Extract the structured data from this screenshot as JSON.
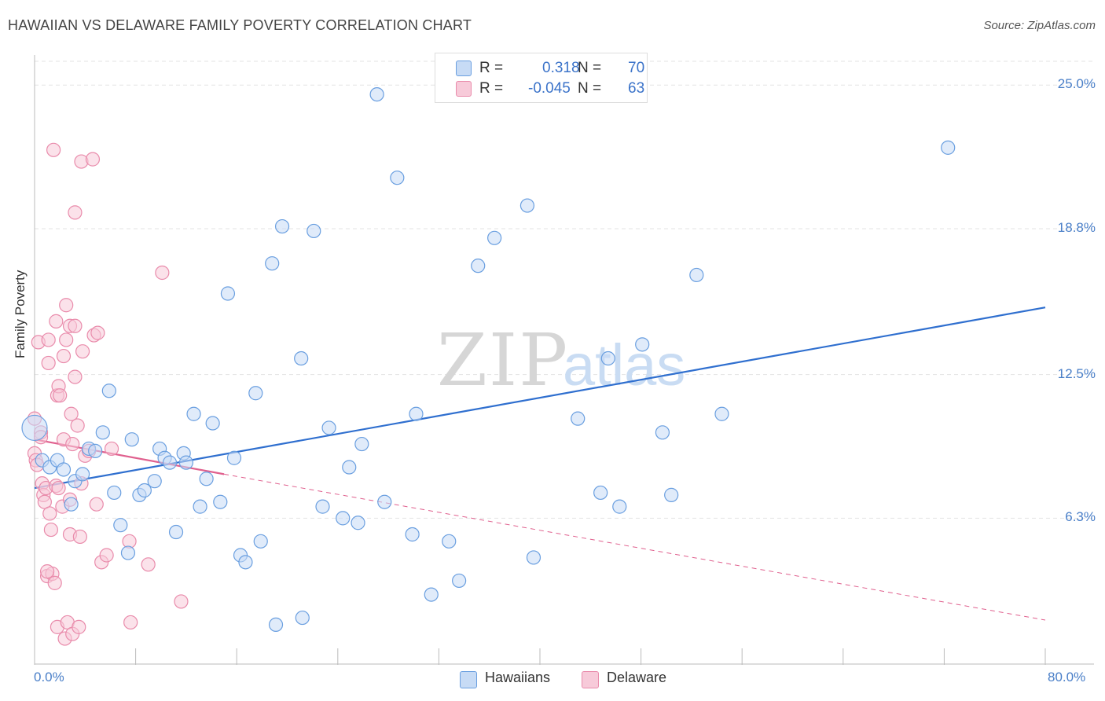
{
  "title": "HAWAIIAN VS DELAWARE FAMILY POVERTY CORRELATION CHART",
  "source": "Source: ZipAtlas.com",
  "watermark": {
    "zip": "ZIP",
    "atlas": "atlas"
  },
  "legend_top": {
    "rows": [
      {
        "r_label": "R =",
        "r_value": "0.318",
        "n_label": "N =",
        "n_value": "70"
      },
      {
        "r_label": "R =",
        "r_value": "-0.045",
        "n_label": "N =",
        "n_value": "63"
      }
    ]
  },
  "legend_bottom": [
    "Hawaiians",
    "Delaware"
  ],
  "colors": {
    "hawaiians": "#6a9fe0",
    "hawaiians_fill": "#c7dbf5",
    "hawaiians_line": "#2f6fcf",
    "delaware": "#e98bab",
    "delaware_fill": "#f7cad9",
    "delaware_line": "#e0608e",
    "tick_text": "#4a7fc8",
    "grid": "#e3e3e3"
  },
  "chart_data": {
    "type": "scatter",
    "title": "HAWAIIAN VS DELAWARE FAMILY POVERTY CORRELATION CHART",
    "xlabel": "",
    "ylabel": "Family Poverty",
    "xlim": [
      0,
      80
    ],
    "ylim": [
      0,
      26.3
    ],
    "x_tick_labels": [
      "0.0%",
      "80.0%"
    ],
    "y_ticks": [
      6.3,
      12.5,
      18.8,
      25.0
    ],
    "y_tick_labels": [
      "6.3%",
      "12.5%",
      "18.8%",
      "25.0%"
    ],
    "grid": true,
    "legend": "bottom-center",
    "series": [
      {
        "name": "Hawaiians",
        "r": 0.318,
        "n": 70,
        "trend": {
          "x": [
            0,
            80
          ],
          "y": [
            7.6,
            15.4
          ],
          "style": "solid"
        },
        "points": [
          [
            0.0,
            10.2
          ],
          [
            0.6,
            8.8
          ],
          [
            1.2,
            8.5
          ],
          [
            1.8,
            8.8
          ],
          [
            2.3,
            8.4
          ],
          [
            2.9,
            6.9
          ],
          [
            3.2,
            7.9
          ],
          [
            3.8,
            8.2
          ],
          [
            4.3,
            9.3
          ],
          [
            4.8,
            9.2
          ],
          [
            5.4,
            10.0
          ],
          [
            5.9,
            11.8
          ],
          [
            6.3,
            7.4
          ],
          [
            6.8,
            6.0
          ],
          [
            7.4,
            4.8
          ],
          [
            7.7,
            9.7
          ],
          [
            8.3,
            7.3
          ],
          [
            8.7,
            7.5
          ],
          [
            9.5,
            7.9
          ],
          [
            9.9,
            9.3
          ],
          [
            10.3,
            8.9
          ],
          [
            10.7,
            8.7
          ],
          [
            11.2,
            5.7
          ],
          [
            11.8,
            9.1
          ],
          [
            12.0,
            8.7
          ],
          [
            12.6,
            10.8
          ],
          [
            13.1,
            6.8
          ],
          [
            13.6,
            8.0
          ],
          [
            14.1,
            10.4
          ],
          [
            14.7,
            7.0
          ],
          [
            15.3,
            16.0
          ],
          [
            15.8,
            8.9
          ],
          [
            16.3,
            4.7
          ],
          [
            16.7,
            4.4
          ],
          [
            17.5,
            11.7
          ],
          [
            17.9,
            5.3
          ],
          [
            18.8,
            17.3
          ],
          [
            19.1,
            1.7
          ],
          [
            19.6,
            18.9
          ],
          [
            21.1,
            13.2
          ],
          [
            21.2,
            2.0
          ],
          [
            22.1,
            18.7
          ],
          [
            22.8,
            6.8
          ],
          [
            23.3,
            10.2
          ],
          [
            24.4,
            6.3
          ],
          [
            24.9,
            8.5
          ],
          [
            25.6,
            6.1
          ],
          [
            25.9,
            9.5
          ],
          [
            27.1,
            24.6
          ],
          [
            27.7,
            7.0
          ],
          [
            28.7,
            21.0
          ],
          [
            29.9,
            5.6
          ],
          [
            30.2,
            10.8
          ],
          [
            31.4,
            3.0
          ],
          [
            32.8,
            5.3
          ],
          [
            33.6,
            3.6
          ],
          [
            35.1,
            17.2
          ],
          [
            36.4,
            18.4
          ],
          [
            39.0,
            19.8
          ],
          [
            39.5,
            4.6
          ],
          [
            43.0,
            10.6
          ],
          [
            44.8,
            7.4
          ],
          [
            45.4,
            13.2
          ],
          [
            46.3,
            6.8
          ],
          [
            48.1,
            13.8
          ],
          [
            49.7,
            10.0
          ],
          [
            50.4,
            7.3
          ],
          [
            52.4,
            16.8
          ],
          [
            54.4,
            10.8
          ],
          [
            72.3,
            22.3
          ]
        ]
      },
      {
        "name": "Delaware",
        "r": -0.045,
        "n": 63,
        "trend": {
          "x": [
            0,
            15
          ],
          "y": [
            9.7,
            8.2
          ],
          "style": "solid",
          "extended_x": [
            15,
            80
          ],
          "extended_y": [
            8.2,
            1.9
          ],
          "extended_style": "dashed"
        },
        "points": [
          [
            0.0,
            10.6
          ],
          [
            0.0,
            9.1
          ],
          [
            0.1,
            8.8
          ],
          [
            0.2,
            8.6
          ],
          [
            0.3,
            13.9
          ],
          [
            0.5,
            10.0
          ],
          [
            0.5,
            9.8
          ],
          [
            0.6,
            7.8
          ],
          [
            0.7,
            7.3
          ],
          [
            0.8,
            7.0
          ],
          [
            0.9,
            7.6
          ],
          [
            1.0,
            3.8
          ],
          [
            1.1,
            13.0
          ],
          [
            1.1,
            14.0
          ],
          [
            1.2,
            6.5
          ],
          [
            1.3,
            5.8
          ],
          [
            1.4,
            3.9
          ],
          [
            1.5,
            22.2
          ],
          [
            1.6,
            3.5
          ],
          [
            1.7,
            14.8
          ],
          [
            1.7,
            7.7
          ],
          [
            1.8,
            11.6
          ],
          [
            1.8,
            1.6
          ],
          [
            1.9,
            12.0
          ],
          [
            2.0,
            11.6
          ],
          [
            2.2,
            6.8
          ],
          [
            2.3,
            13.3
          ],
          [
            2.3,
            9.7
          ],
          [
            2.4,
            1.1
          ],
          [
            2.5,
            15.5
          ],
          [
            2.5,
            14.0
          ],
          [
            2.6,
            1.8
          ],
          [
            2.8,
            14.6
          ],
          [
            2.8,
            5.6
          ],
          [
            2.9,
            10.8
          ],
          [
            3.0,
            1.3
          ],
          [
            3.0,
            9.5
          ],
          [
            3.2,
            12.4
          ],
          [
            3.2,
            19.5
          ],
          [
            3.2,
            14.6
          ],
          [
            3.4,
            10.3
          ],
          [
            3.5,
            1.6
          ],
          [
            3.6,
            5.5
          ],
          [
            3.7,
            7.8
          ],
          [
            3.8,
            13.5
          ],
          [
            3.7,
            21.7
          ],
          [
            4.0,
            9.0
          ],
          [
            4.3,
            9.2
          ],
          [
            4.6,
            21.8
          ],
          [
            4.7,
            14.2
          ],
          [
            4.9,
            6.9
          ],
          [
            5.0,
            14.3
          ],
          [
            5.3,
            4.4
          ],
          [
            5.7,
            4.7
          ],
          [
            6.1,
            9.3
          ],
          [
            7.5,
            5.3
          ],
          [
            7.6,
            1.8
          ],
          [
            9.0,
            4.3
          ],
          [
            10.1,
            16.9
          ],
          [
            11.6,
            2.7
          ],
          [
            1.0,
            4.0
          ],
          [
            1.9,
            7.6
          ],
          [
            2.8,
            7.1
          ]
        ]
      }
    ]
  }
}
